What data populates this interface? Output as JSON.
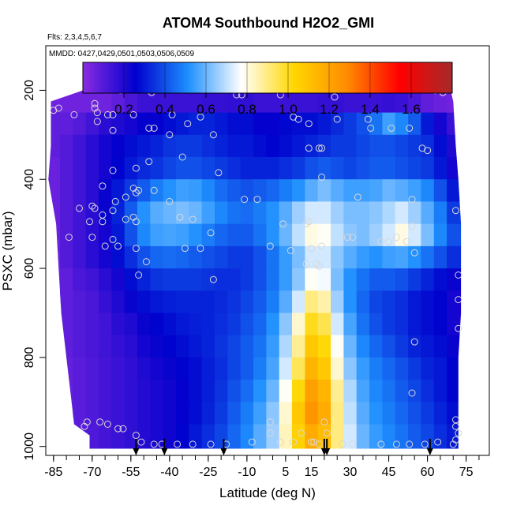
{
  "chart_data": {
    "type": "heatmap",
    "title": "ATOM4 Southbound H2O2_GMI",
    "subtitle_flights": "Flts: 2,3,4,5,6,7",
    "subtitle_dates": "MMDD: 0427,0429,0501,0503,0506,0509",
    "xlabel": "Latitude (deg N)",
    "ylabel": "PSXC (mbar)",
    "xlim": [
      -88,
      84
    ],
    "ylim": [
      1020,
      100
    ],
    "xticks": [
      -85,
      -70,
      -55,
      -40,
      -25,
      -10,
      5,
      15,
      30,
      45,
      60,
      75
    ],
    "yticks": [
      200,
      400,
      600,
      800,
      1000
    ],
    "colorbar": {
      "range": [
        0,
        1.8
      ],
      "ticks": [
        "0.2",
        "0.4",
        "0.6",
        "0.8",
        "1.0",
        "1.2",
        "1.4",
        "1.6"
      ],
      "tick_values": [
        0.2,
        0.4,
        0.6,
        0.8,
        1.0,
        1.2,
        1.4,
        1.6
      ],
      "colors": [
        "#8a2be2",
        "#0000cd",
        "#1e90ff",
        "#ffffff",
        "#ffd700",
        "#ff8c00",
        "#ff0000",
        "#a52a2a"
      ]
    },
    "field_latitudes": [
      -85,
      -80,
      -75,
      -70,
      -65,
      -60,
      -55,
      -50,
      -45,
      -40,
      -35,
      -30,
      -25,
      -20,
      -15,
      -10,
      -5,
      0,
      5,
      10,
      15,
      20,
      25,
      30,
      35,
      40,
      45,
      50,
      55,
      60,
      65,
      70
    ],
    "field_pressures": [
      225,
      275,
      325,
      375,
      425,
      475,
      525,
      575,
      625,
      675,
      725,
      775,
      825,
      875,
      925,
      975
    ],
    "field_values": [
      [
        0.05,
        0.05,
        0.05,
        0.05,
        0.05,
        0.08,
        0.12,
        0.15,
        0.15,
        0.15,
        0.15,
        0.15,
        0.16,
        0.16,
        0.17,
        0.17,
        0.15,
        0.15,
        0.15,
        0.15,
        0.15,
        0.16,
        0.16,
        0.15,
        0.15,
        0.15,
        0.16,
        0.15,
        0.12,
        0.08,
        0.06,
        0.05
      ],
      [
        0.08,
        0.08,
        0.1,
        0.14,
        0.18,
        0.2,
        0.22,
        0.25,
        0.25,
        0.28,
        0.3,
        0.32,
        0.32,
        0.3,
        0.28,
        0.28,
        0.25,
        0.25,
        0.27,
        0.28,
        0.28,
        0.3,
        0.33,
        0.36,
        0.4,
        0.46,
        0.55,
        0.5,
        0.42,
        0.3,
        0.22,
        0.15
      ],
      [
        0.08,
        0.1,
        0.14,
        0.18,
        0.22,
        0.25,
        0.28,
        0.3,
        0.32,
        0.35,
        0.36,
        0.36,
        0.34,
        0.32,
        0.3,
        0.3,
        0.28,
        0.26,
        0.28,
        0.3,
        0.32,
        0.34,
        0.36,
        0.36,
        0.38,
        0.4,
        0.4,
        0.38,
        0.36,
        0.34,
        0.28,
        0.2
      ],
      [
        0.06,
        0.1,
        0.14,
        0.18,
        0.22,
        0.26,
        0.3,
        0.33,
        0.35,
        0.38,
        0.4,
        0.4,
        0.38,
        0.36,
        0.34,
        0.32,
        0.32,
        0.32,
        0.34,
        0.36,
        0.4,
        0.42,
        0.4,
        0.38,
        0.4,
        0.42,
        0.42,
        0.4,
        0.38,
        0.36,
        0.3,
        0.22
      ],
      [
        0.06,
        0.1,
        0.14,
        0.18,
        0.24,
        0.3,
        0.36,
        0.42,
        0.48,
        0.52,
        0.55,
        0.54,
        0.5,
        0.45,
        0.42,
        0.4,
        0.42,
        0.44,
        0.48,
        0.52,
        0.58,
        0.62,
        0.58,
        0.55,
        0.55,
        0.56,
        0.6,
        0.58,
        0.55,
        0.5,
        0.4,
        0.3
      ],
      [
        0.06,
        0.1,
        0.14,
        0.18,
        0.24,
        0.32,
        0.42,
        0.52,
        0.58,
        0.6,
        0.62,
        0.6,
        0.55,
        0.5,
        0.46,
        0.45,
        0.48,
        0.52,
        0.58,
        0.66,
        0.72,
        0.72,
        0.66,
        0.62,
        0.62,
        0.64,
        0.68,
        0.72,
        0.66,
        0.58,
        0.48,
        0.36
      ],
      [
        0.06,
        0.1,
        0.14,
        0.18,
        0.22,
        0.3,
        0.4,
        0.5,
        0.55,
        0.56,
        0.55,
        0.52,
        0.48,
        0.44,
        0.42,
        0.42,
        0.46,
        0.52,
        0.6,
        0.7,
        0.8,
        0.78,
        0.7,
        0.64,
        0.62,
        0.66,
        0.72,
        0.8,
        0.72,
        0.62,
        0.5,
        0.4
      ],
      [
        0.06,
        0.1,
        0.14,
        0.18,
        0.22,
        0.28,
        0.34,
        0.4,
        0.44,
        0.45,
        0.44,
        0.42,
        0.4,
        0.38,
        0.36,
        0.36,
        0.4,
        0.46,
        0.54,
        0.62,
        0.72,
        0.72,
        0.64,
        0.58,
        0.54,
        0.52,
        0.55,
        0.56,
        0.52,
        0.46,
        0.4,
        0.34
      ],
      [
        0.06,
        0.08,
        0.12,
        0.14,
        0.18,
        0.22,
        0.28,
        0.32,
        0.35,
        0.36,
        0.36,
        0.36,
        0.35,
        0.34,
        0.34,
        0.36,
        0.4,
        0.46,
        0.54,
        0.64,
        0.78,
        0.76,
        0.62,
        0.52,
        0.46,
        0.42,
        0.42,
        0.4,
        0.36,
        0.32,
        0.28,
        0.24
      ],
      [
        0.06,
        0.08,
        0.1,
        0.12,
        0.16,
        0.2,
        0.24,
        0.28,
        0.3,
        0.31,
        0.32,
        0.32,
        0.32,
        0.33,
        0.35,
        0.38,
        0.42,
        0.48,
        0.58,
        0.72,
        0.9,
        0.86,
        0.66,
        0.52,
        0.44,
        0.38,
        0.36,
        0.34,
        0.3,
        0.28,
        0.26,
        0.22
      ],
      [
        0.06,
        0.08,
        0.1,
        0.12,
        0.14,
        0.18,
        0.2,
        0.24,
        0.26,
        0.28,
        0.3,
        0.31,
        0.32,
        0.34,
        0.36,
        0.4,
        0.44,
        0.52,
        0.64,
        0.82,
        1.0,
        0.95,
        0.72,
        0.56,
        0.46,
        0.4,
        0.36,
        0.34,
        0.3,
        0.28,
        0.26,
        0.22
      ],
      [
        0.06,
        0.08,
        0.1,
        0.12,
        0.14,
        0.16,
        0.18,
        0.22,
        0.24,
        0.26,
        0.28,
        0.3,
        0.32,
        0.35,
        0.38,
        0.42,
        0.46,
        0.54,
        0.68,
        0.88,
        1.08,
        1.02,
        0.78,
        0.6,
        0.5,
        0.44,
        0.4,
        0.36,
        0.32,
        0.3,
        0.28,
        0.24
      ],
      [
        0.06,
        0.07,
        0.09,
        0.11,
        0.13,
        0.15,
        0.17,
        0.2,
        0.22,
        0.24,
        0.26,
        0.28,
        0.31,
        0.34,
        0.38,
        0.42,
        0.48,
        0.56,
        0.72,
        0.94,
        1.15,
        1.08,
        0.82,
        0.64,
        0.54,
        0.48,
        0.44,
        0.4,
        0.36,
        0.32,
        0.3,
        0.26
      ],
      [
        0.06,
        0.07,
        0.09,
        0.11,
        0.13,
        0.15,
        0.17,
        0.19,
        0.21,
        0.23,
        0.25,
        0.28,
        0.31,
        0.35,
        0.4,
        0.45,
        0.52,
        0.6,
        0.78,
        1.02,
        1.22,
        1.15,
        0.88,
        0.68,
        0.56,
        0.5,
        0.46,
        0.42,
        0.38,
        0.34,
        0.3,
        0.26
      ],
      [
        0.06,
        0.07,
        0.09,
        0.11,
        0.13,
        0.15,
        0.17,
        0.19,
        0.21,
        0.23,
        0.25,
        0.28,
        0.32,
        0.36,
        0.42,
        0.48,
        0.55,
        0.64,
        0.82,
        1.08,
        1.25,
        1.18,
        0.9,
        0.7,
        0.58,
        0.52,
        0.48,
        0.44,
        0.4,
        0.36,
        0.32,
        0.28
      ],
      [
        0.06,
        0.07,
        0.09,
        0.11,
        0.13,
        0.15,
        0.17,
        0.19,
        0.21,
        0.23,
        0.26,
        0.3,
        0.34,
        0.38,
        0.44,
        0.5,
        0.58,
        0.66,
        0.84,
        1.05,
        1.18,
        1.12,
        0.9,
        0.72,
        0.6,
        0.54,
        0.5,
        0.46,
        0.42,
        0.38,
        0.34,
        0.3
      ]
    ],
    "latitude_bounds_by_pressure": [
      {
        "p": 175,
        "lat_min": -61,
        "lat_max": 68
      },
      {
        "p": 225,
        "lat_min": -86,
        "lat_max": 70
      },
      {
        "p": 325,
        "lat_min": -86,
        "lat_max": 71
      },
      {
        "p": 400,
        "lat_min": -87,
        "lat_max": 72
      },
      {
        "p": 500,
        "lat_min": -84,
        "lat_max": 73
      },
      {
        "p": 600,
        "lat_min": -83,
        "lat_max": 73
      },
      {
        "p": 700,
        "lat_min": -82,
        "lat_max": 73
      },
      {
        "p": 800,
        "lat_min": -80,
        "lat_max": 72
      },
      {
        "p": 900,
        "lat_min": -78,
        "lat_max": 72
      },
      {
        "p": 950,
        "lat_min": -77,
        "lat_max": 72
      },
      {
        "p": 975,
        "lat_min": -71,
        "lat_max": 72
      },
      {
        "p": 1005,
        "lat_min": -71,
        "lat_max": 72
      }
    ],
    "observations": [
      {
        "lat": -59,
        "p": 200
      },
      {
        "lat": -48,
        "p": 200
      },
      {
        "lat": -47,
        "p": 205
      },
      {
        "lat": -12,
        "p": 210
      },
      {
        "lat": -14,
        "p": 210
      },
      {
        "lat": 3,
        "p": 210
      },
      {
        "lat": 24,
        "p": 215
      },
      {
        "lat": 63,
        "p": 200
      },
      {
        "lat": 66,
        "p": 205
      },
      {
        "lat": -69,
        "p": 230
      },
      {
        "lat": -69,
        "p": 240
      },
      {
        "lat": -83,
        "p": 240
      },
      {
        "lat": -85,
        "p": 245
      },
      {
        "lat": -77,
        "p": 255
      },
      {
        "lat": -68,
        "p": 250
      },
      {
        "lat": -64,
        "p": 255
      },
      {
        "lat": -62,
        "p": 255
      },
      {
        "lat": -54,
        "p": 255
      },
      {
        "lat": -39,
        "p": 255
      },
      {
        "lat": -28,
        "p": 260
      },
      {
        "lat": -33,
        "p": 275
      },
      {
        "lat": 8,
        "p": 260
      },
      {
        "lat": 25,
        "p": 265
      },
      {
        "lat": 37,
        "p": 265
      },
      {
        "lat": -68,
        "p": 270
      },
      {
        "lat": -46,
        "p": 285
      },
      {
        "lat": -48,
        "p": 285
      },
      {
        "lat": -62,
        "p": 290
      },
      {
        "lat": -40,
        "p": 300
      },
      {
        "lat": -23,
        "p": 300
      },
      {
        "lat": 38,
        "p": 285
      },
      {
        "lat": 46,
        "p": 285
      },
      {
        "lat": 53,
        "p": 285
      },
      {
        "lat": 14,
        "p": 275
      },
      {
        "lat": 10,
        "p": 265
      },
      {
        "lat": 14,
        "p": 330
      },
      {
        "lat": 18,
        "p": 330
      },
      {
        "lat": 19,
        "p": 330
      },
      {
        "lat": 58,
        "p": 330
      },
      {
        "lat": 60,
        "p": 335
      },
      {
        "lat": -48,
        "p": 360
      },
      {
        "lat": -35,
        "p": 350
      },
      {
        "lat": -53,
        "p": 375
      },
      {
        "lat": -62,
        "p": 380
      },
      {
        "lat": -21,
        "p": 385
      },
      {
        "lat": 19,
        "p": 395
      },
      {
        "lat": -54,
        "p": 420
      },
      {
        "lat": -53,
        "p": 430
      },
      {
        "lat": -52,
        "p": 425
      },
      {
        "lat": -66,
        "p": 415
      },
      {
        "lat": -57,
        "p": 440
      },
      {
        "lat": -61,
        "p": 450
      },
      {
        "lat": -46,
        "p": 425
      },
      {
        "lat": -40,
        "p": 450
      },
      {
        "lat": -75,
        "p": 465
      },
      {
        "lat": -70,
        "p": 460
      },
      {
        "lat": -69,
        "p": 465
      },
      {
        "lat": -66,
        "p": 480
      },
      {
        "lat": -62,
        "p": 470
      },
      {
        "lat": -57,
        "p": 490
      },
      {
        "lat": -54,
        "p": 485
      },
      {
        "lat": -66,
        "p": 495
      },
      {
        "lat": -71,
        "p": 495
      },
      {
        "lat": -36,
        "p": 485
      },
      {
        "lat": -31,
        "p": 490
      },
      {
        "lat": -11,
        "p": 445
      },
      {
        "lat": -6,
        "p": 445
      },
      {
        "lat": 33,
        "p": 440
      },
      {
        "lat": 54,
        "p": 445
      },
      {
        "lat": 71,
        "p": 470
      },
      {
        "lat": -53,
        "p": 495
      },
      {
        "lat": 4,
        "p": 500
      },
      {
        "lat": 13,
        "p": 500
      },
      {
        "lat": 14,
        "p": 495
      },
      {
        "lat": 54,
        "p": 505
      },
      {
        "lat": -79,
        "p": 530
      },
      {
        "lat": -70,
        "p": 530
      },
      {
        "lat": -62,
        "p": 535
      },
      {
        "lat": -24,
        "p": 520
      },
      {
        "lat": 29,
        "p": 530
      },
      {
        "lat": 31,
        "p": 530
      },
      {
        "lat": 42,
        "p": 540
      },
      {
        "lat": 45,
        "p": 540
      },
      {
        "lat": 48,
        "p": 530
      },
      {
        "lat": 52,
        "p": 540
      },
      {
        "lat": -65,
        "p": 550
      },
      {
        "lat": -60,
        "p": 550
      },
      {
        "lat": -53,
        "p": 555
      },
      {
        "lat": -28,
        "p": 555
      },
      {
        "lat": -34,
        "p": 555
      },
      {
        "lat": -1,
        "p": 550
      },
      {
        "lat": 7,
        "p": 560
      },
      {
        "lat": 15,
        "p": 555
      },
      {
        "lat": 19,
        "p": 550
      },
      {
        "lat": 55,
        "p": 565
      },
      {
        "lat": -49,
        "p": 585
      },
      {
        "lat": 13,
        "p": 590
      },
      {
        "lat": 17,
        "p": 590
      },
      {
        "lat": 18,
        "p": 595
      },
      {
        "lat": -52,
        "p": 615
      },
      {
        "lat": -23,
        "p": 625
      },
      {
        "lat": 72,
        "p": 615
      },
      {
        "lat": 72,
        "p": 670
      },
      {
        "lat": 72,
        "p": 735
      },
      {
        "lat": 55,
        "p": 765
      },
      {
        "lat": 54,
        "p": 880
      },
      {
        "lat": 71,
        "p": 940
      },
      {
        "lat": -72,
        "p": 945
      },
      {
        "lat": -73,
        "p": 955
      },
      {
        "lat": -67,
        "p": 945
      },
      {
        "lat": -64,
        "p": 950
      },
      {
        "lat": -60,
        "p": 960
      },
      {
        "lat": -58,
        "p": 960
      },
      {
        "lat": -1,
        "p": 945
      },
      {
        "lat": 20,
        "p": 945
      },
      {
        "lat": 71,
        "p": 955
      },
      {
        "lat": -53,
        "p": 975
      },
      {
        "lat": -1,
        "p": 970
      },
      {
        "lat": 11,
        "p": 970
      },
      {
        "lat": 16,
        "p": 990
      },
      {
        "lat": 21,
        "p": 970
      },
      {
        "lat": 72,
        "p": 970
      },
      {
        "lat": 71,
        "p": 985
      },
      {
        "lat": -51,
        "p": 990
      },
      {
        "lat": -46,
        "p": 995
      },
      {
        "lat": -43,
        "p": 995
      },
      {
        "lat": -37,
        "p": 995
      },
      {
        "lat": -31,
        "p": 995
      },
      {
        "lat": -24,
        "p": 995
      },
      {
        "lat": -18,
        "p": 995
      },
      {
        "lat": -8,
        "p": 990
      },
      {
        "lat": 3,
        "p": 990
      },
      {
        "lat": 8,
        "p": 990
      },
      {
        "lat": 15,
        "p": 990
      },
      {
        "lat": 18,
        "p": 995
      },
      {
        "lat": 27,
        "p": 995
      },
      {
        "lat": 31,
        "p": 995
      },
      {
        "lat": 42,
        "p": 995
      },
      {
        "lat": 48,
        "p": 995
      },
      {
        "lat": 53,
        "p": 995
      },
      {
        "lat": 59,
        "p": 995
      },
      {
        "lat": 64,
        "p": 990
      },
      {
        "lat": 70,
        "p": 995
      }
    ],
    "arrow_latitudes": [
      -53,
      -42,
      -19,
      20,
      21,
      61
    ]
  }
}
